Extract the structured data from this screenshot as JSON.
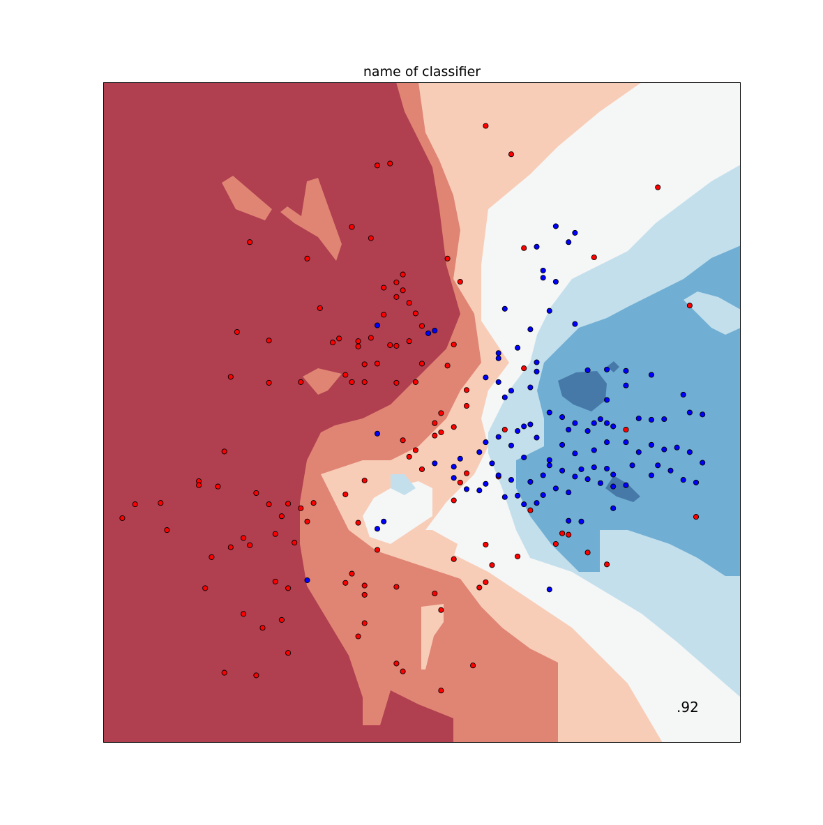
{
  "chart_data": {
    "type": "scatter",
    "title": "name of classifier",
    "xlabel": "",
    "ylabel": "",
    "xlim": [
      0,
      1
    ],
    "ylim": [
      0,
      1
    ],
    "grid": false,
    "annotation": ".92",
    "colors": {
      "class_0": "#ff0000",
      "class_1": "#0000ff",
      "region_strong_red": "#b03f50",
      "region_mid_red": "#e08574",
      "region_light_red": "#f8cdb8",
      "region_neutral": "#f5f6f6",
      "region_light_blue": "#c3dfec",
      "region_mid_blue": "#70aed3",
      "region_dark_blue": "#4679a8"
    },
    "series": [
      {
        "class": "0",
        "color": "#ff0000",
        "points": [
          [
            0.6,
            0.934
          ],
          [
            0.64,
            0.891
          ],
          [
            0.43,
            0.874
          ],
          [
            0.45,
            0.877
          ],
          [
            0.87,
            0.841
          ],
          [
            0.39,
            0.781
          ],
          [
            0.23,
            0.758
          ],
          [
            0.42,
            0.764
          ],
          [
            0.32,
            0.733
          ],
          [
            0.54,
            0.733
          ],
          [
            0.66,
            0.749
          ],
          [
            0.56,
            0.698
          ],
          [
            0.47,
            0.709
          ],
          [
            0.46,
            0.697
          ],
          [
            0.44,
            0.689
          ],
          [
            0.47,
            0.685
          ],
          [
            0.34,
            0.658
          ],
          [
            0.46,
            0.675
          ],
          [
            0.48,
            0.666
          ],
          [
            0.49,
            0.65
          ],
          [
            0.44,
            0.648
          ],
          [
            0.21,
            0.622
          ],
          [
            0.26,
            0.609
          ],
          [
            0.5,
            0.631
          ],
          [
            0.48,
            0.608
          ],
          [
            0.4,
            0.608
          ],
          [
            0.36,
            0.606
          ],
          [
            0.37,
            0.612
          ],
          [
            0.4,
            0.6
          ],
          [
            0.42,
            0.613
          ],
          [
            0.45,
            0.602
          ],
          [
            0.46,
            0.601
          ],
          [
            0.41,
            0.573
          ],
          [
            0.43,
            0.574
          ],
          [
            0.5,
            0.574
          ],
          [
            0.55,
            0.603
          ],
          [
            0.66,
            0.567
          ],
          [
            0.2,
            0.554
          ],
          [
            0.26,
            0.545
          ],
          [
            0.41,
            0.546
          ],
          [
            0.49,
            0.546
          ],
          [
            0.38,
            0.557
          ],
          [
            0.39,
            0.546
          ],
          [
            0.31,
            0.546
          ],
          [
            0.46,
            0.545
          ],
          [
            0.54,
            0.571
          ],
          [
            0.92,
            0.662
          ],
          [
            0.77,
            0.735
          ],
          [
            0.82,
            0.474
          ],
          [
            0.93,
            0.342
          ],
          [
            0.79,
            0.27
          ],
          [
            0.76,
            0.288
          ],
          [
            0.73,
            0.315
          ],
          [
            0.57,
            0.534
          ],
          [
            0.57,
            0.51
          ],
          [
            0.53,
            0.499
          ],
          [
            0.52,
            0.484
          ],
          [
            0.53,
            0.47
          ],
          [
            0.49,
            0.443
          ],
          [
            0.47,
            0.458
          ],
          [
            0.5,
            0.414
          ],
          [
            0.52,
            0.465
          ],
          [
            0.55,
            0.478
          ],
          [
            0.63,
            0.474
          ],
          [
            0.67,
            0.352
          ],
          [
            0.71,
            0.301
          ],
          [
            0.62,
            0.403
          ],
          [
            0.57,
            0.408
          ],
          [
            0.56,
            0.394
          ],
          [
            0.55,
            0.367
          ],
          [
            0.48,
            0.433
          ],
          [
            0.41,
            0.397
          ],
          [
            0.38,
            0.376
          ],
          [
            0.26,
            0.361
          ],
          [
            0.19,
            0.441
          ],
          [
            0.09,
            0.363
          ],
          [
            0.1,
            0.322
          ],
          [
            0.15,
            0.396
          ],
          [
            0.18,
            0.388
          ],
          [
            0.24,
            0.378
          ],
          [
            0.29,
            0.362
          ],
          [
            0.31,
            0.355
          ],
          [
            0.32,
            0.335
          ],
          [
            0.27,
            0.316
          ],
          [
            0.3,
            0.303
          ],
          [
            0.22,
            0.31
          ],
          [
            0.23,
            0.299
          ],
          [
            0.17,
            0.281
          ],
          [
            0.27,
            0.244
          ],
          [
            0.29,
            0.234
          ],
          [
            0.39,
            0.256
          ],
          [
            0.41,
            0.238
          ],
          [
            0.41,
            0.224
          ],
          [
            0.46,
            0.236
          ],
          [
            0.52,
            0.226
          ],
          [
            0.53,
            0.201
          ],
          [
            0.59,
            0.235
          ],
          [
            0.6,
            0.243
          ],
          [
            0.61,
            0.269
          ],
          [
            0.22,
            0.195
          ],
          [
            0.28,
            0.186
          ],
          [
            0.29,
            0.136
          ],
          [
            0.25,
            0.174
          ],
          [
            0.4,
            0.161
          ],
          [
            0.46,
            0.12
          ],
          [
            0.47,
            0.108
          ],
          [
            0.19,
            0.106
          ],
          [
            0.24,
            0.102
          ],
          [
            0.53,
            0.079
          ],
          [
            0.58,
            0.117
          ],
          [
            0.41,
            0.181
          ],
          [
            0.2,
            0.296
          ],
          [
            0.38,
            0.242
          ],
          [
            0.43,
            0.292
          ],
          [
            0.4,
            0.333
          ],
          [
            0.33,
            0.363
          ],
          [
            0.28,
            0.343
          ],
          [
            0.15,
            0.39
          ],
          [
            0.05,
            0.361
          ],
          [
            0.03,
            0.34
          ],
          [
            0.16,
            0.234
          ],
          [
            0.72,
            0.317
          ],
          [
            0.65,
            0.282
          ],
          [
            0.6,
            0.3
          ],
          [
            0.55,
            0.278
          ]
        ]
      },
      {
        "class": "1",
        "color": "#0000ff",
        "points": [
          [
            0.71,
            0.782
          ],
          [
            0.74,
            0.772
          ],
          [
            0.73,
            0.758
          ],
          [
            0.68,
            0.751
          ],
          [
            0.69,
            0.715
          ],
          [
            0.69,
            0.704
          ],
          [
            0.71,
            0.698
          ],
          [
            0.7,
            0.654
          ],
          [
            0.63,
            0.657
          ],
          [
            0.74,
            0.634
          ],
          [
            0.67,
            0.626
          ],
          [
            0.65,
            0.598
          ],
          [
            0.62,
            0.59
          ],
          [
            0.68,
            0.576
          ],
          [
            0.68,
            0.562
          ],
          [
            0.67,
            0.538
          ],
          [
            0.6,
            0.553
          ],
          [
            0.62,
            0.546
          ],
          [
            0.64,
            0.533
          ],
          [
            0.63,
            0.523
          ],
          [
            0.76,
            0.564
          ],
          [
            0.79,
            0.565
          ],
          [
            0.82,
            0.563
          ],
          [
            0.86,
            0.557
          ],
          [
            0.91,
            0.527
          ],
          [
            0.82,
            0.541
          ],
          [
            0.79,
            0.519
          ],
          [
            0.7,
            0.5
          ],
          [
            0.72,
            0.493
          ],
          [
            0.67,
            0.482
          ],
          [
            0.66,
            0.479
          ],
          [
            0.65,
            0.472
          ],
          [
            0.68,
            0.462
          ],
          [
            0.73,
            0.474
          ],
          [
            0.74,
            0.484
          ],
          [
            0.76,
            0.472
          ],
          [
            0.77,
            0.484
          ],
          [
            0.78,
            0.49
          ],
          [
            0.79,
            0.484
          ],
          [
            0.8,
            0.479
          ],
          [
            0.84,
            0.491
          ],
          [
            0.86,
            0.489
          ],
          [
            0.88,
            0.49
          ],
          [
            0.92,
            0.5
          ],
          [
            0.94,
            0.497
          ],
          [
            0.82,
            0.455
          ],
          [
            0.79,
            0.455
          ],
          [
            0.77,
            0.443
          ],
          [
            0.74,
            0.438
          ],
          [
            0.72,
            0.451
          ],
          [
            0.7,
            0.428
          ],
          [
            0.69,
            0.405
          ],
          [
            0.67,
            0.395
          ],
          [
            0.64,
            0.398
          ],
          [
            0.62,
            0.405
          ],
          [
            0.6,
            0.392
          ],
          [
            0.59,
            0.382
          ],
          [
            0.57,
            0.384
          ],
          [
            0.55,
            0.401
          ],
          [
            0.52,
            0.423
          ],
          [
            0.55,
            0.418
          ],
          [
            0.56,
            0.43
          ],
          [
            0.59,
            0.44
          ],
          [
            0.6,
            0.455
          ],
          [
            0.62,
            0.463
          ],
          [
            0.64,
            0.45
          ],
          [
            0.66,
            0.432
          ],
          [
            0.7,
            0.42
          ],
          [
            0.72,
            0.412
          ],
          [
            0.75,
            0.414
          ],
          [
            0.77,
            0.417
          ],
          [
            0.79,
            0.415
          ],
          [
            0.8,
            0.406
          ],
          [
            0.83,
            0.42
          ],
          [
            0.86,
            0.405
          ],
          [
            0.87,
            0.42
          ],
          [
            0.89,
            0.412
          ],
          [
            0.91,
            0.398
          ],
          [
            0.93,
            0.394
          ],
          [
            0.84,
            0.44
          ],
          [
            0.86,
            0.451
          ],
          [
            0.88,
            0.444
          ],
          [
            0.9,
            0.447
          ],
          [
            0.92,
            0.44
          ],
          [
            0.94,
            0.424
          ],
          [
            0.74,
            0.403
          ],
          [
            0.76,
            0.399
          ],
          [
            0.78,
            0.393
          ],
          [
            0.8,
            0.388
          ],
          [
            0.82,
            0.39
          ],
          [
            0.71,
            0.385
          ],
          [
            0.69,
            0.375
          ],
          [
            0.65,
            0.374
          ],
          [
            0.63,
            0.372
          ],
          [
            0.66,
            0.361
          ],
          [
            0.68,
            0.363
          ],
          [
            0.73,
            0.336
          ],
          [
            0.7,
            0.232
          ],
          [
            0.44,
            0.335
          ],
          [
            0.43,
            0.324
          ],
          [
            0.32,
            0.246
          ],
          [
            0.43,
            0.468
          ],
          [
            0.52,
            0.624
          ],
          [
            0.51,
            0.62
          ],
          [
            0.43,
            0.632
          ],
          [
            0.62,
            0.582
          ],
          [
            0.8,
            0.355
          ],
          [
            0.75,
            0.335
          ],
          [
            0.73,
            0.379
          ],
          [
            0.61,
            0.423
          ]
        ]
      }
    ]
  }
}
